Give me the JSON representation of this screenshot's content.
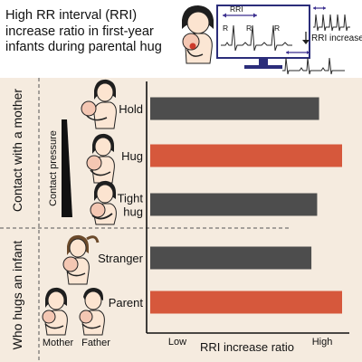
{
  "title_lines": [
    "High RR interval (RRI)",
    "increase ratio in first-year",
    "infants during parental hug"
  ],
  "ecg_screen": {
    "rri_label": "RRI",
    "r_labels": [
      "R",
      "R",
      "R"
    ]
  },
  "rri_increase_label": "RRI increase",
  "group_labels": {
    "contact": "Contact with a mother",
    "who": "Who hugs an infant"
  },
  "contact_pressure_label": "Contact pressure",
  "caption_mother": "Mother",
  "caption_father": "Father",
  "colors": {
    "bar_gray": "#4d4d4d",
    "bar_red": "#d6583c",
    "panel_bg": "#f5ebdf",
    "screen_border": "#2b2d7a"
  },
  "chart_data": {
    "type": "bar",
    "orientation": "horizontal",
    "categories": [
      "Hold",
      "Hug",
      "Tight hug",
      "Stranger",
      "Parent"
    ],
    "category_labels": [
      [
        "Hold"
      ],
      [
        "Hug"
      ],
      [
        "Tight",
        "hug"
      ],
      [
        "Stranger"
      ],
      [
        "Parent"
      ]
    ],
    "values": [
      0.88,
      1.0,
      0.87,
      0.84,
      1.0
    ],
    "bar_colors": [
      "#4d4d4d",
      "#d6583c",
      "#4d4d4d",
      "#4d4d4d",
      "#d6583c"
    ],
    "xlabel": "RRI increase ratio",
    "xtick_labels": [
      "Low",
      "High"
    ],
    "xlim": [
      0,
      1
    ],
    "ylabel": "",
    "grid": false
  }
}
